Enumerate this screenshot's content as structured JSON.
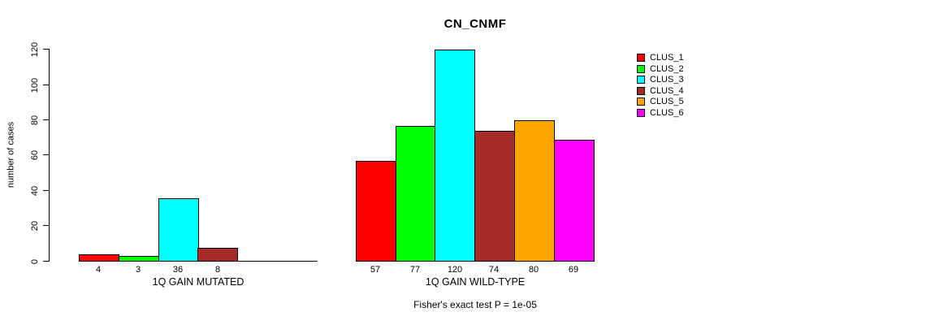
{
  "chart_data": {
    "type": "bar",
    "title": "CN_CNMF",
    "ylabel": "number of cases",
    "ylim": [
      0,
      120
    ],
    "yticks": [
      0,
      20,
      40,
      60,
      80,
      100,
      120
    ],
    "grid": false,
    "legend_position": "right",
    "legend": [
      "CLUS_1",
      "CLUS_2",
      "CLUS_3",
      "CLUS_4",
      "CLUS_5",
      "CLUS_6"
    ],
    "colors": [
      "#ff0000",
      "#00ff00",
      "#00ffff",
      "#a52a2a",
      "#ffa500",
      "#ff00ff"
    ],
    "annotation": "Fisher's exact test P = 1e-05",
    "groups": [
      {
        "label": "1Q GAIN MUTATED",
        "values": [
          4,
          3,
          36,
          8,
          0,
          0
        ],
        "bar_labels": [
          "4",
          "3",
          "36",
          "8",
          "",
          ""
        ]
      },
      {
        "label": "1Q GAIN WILD-TYPE",
        "values": [
          57,
          77,
          120,
          74,
          80,
          69
        ],
        "bar_labels": [
          "57",
          "77",
          "120",
          "74",
          "80",
          "69"
        ]
      }
    ]
  }
}
